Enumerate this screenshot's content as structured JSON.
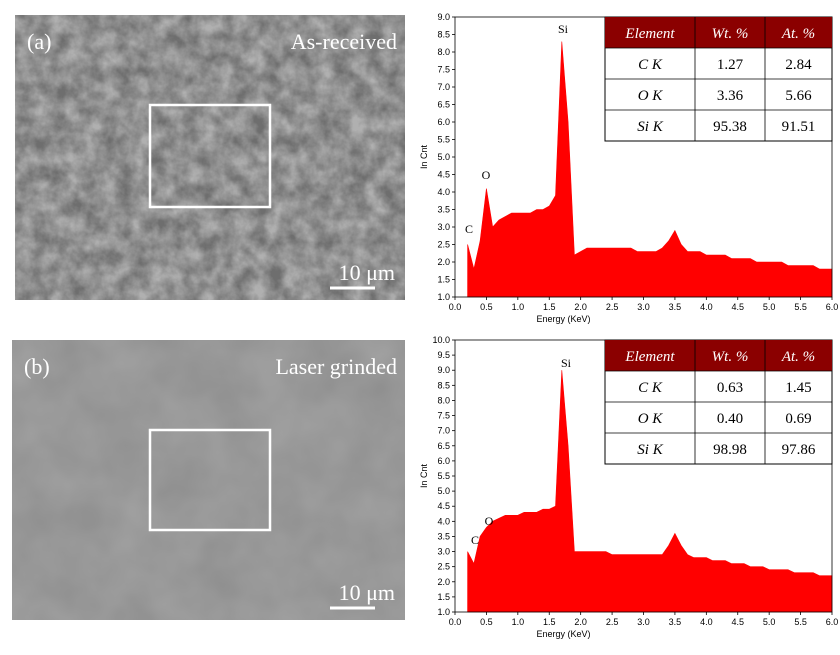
{
  "panels": [
    {
      "label": "(a)",
      "caption": "As-received",
      "scale_bar": "10 μm",
      "spectrum": {
        "type": "area",
        "color": "#ff0000",
        "x_label": "Energy (KeV)",
        "y_label": "In Cnt",
        "xlim": [
          0,
          6
        ],
        "xticks": [
          {
            "value": 0,
            "label": "0.0"
          },
          0.5,
          {
            "value": 1,
            "label": "1.0"
          },
          1.5,
          {
            "value": 2,
            "label": "2.0"
          },
          2.5,
          {
            "value": 3,
            "label": "3.0"
          },
          3.5,
          {
            "value": 4,
            "label": "4.0"
          },
          4.5,
          {
            "value": 5,
            "label": "5.0"
          },
          5.5,
          {
            "value": 6,
            "label": "6.0"
          }
        ],
        "ylim": [
          1,
          9
        ],
        "yticks": [
          {
            "value": 1,
            "label": "1.0"
          },
          1.5,
          {
            "value": 2,
            "label": "2.0"
          },
          2.5,
          {
            "value": 3,
            "label": "3.0"
          },
          3.5,
          {
            "value": 4,
            "label": "4.0"
          },
          4.5,
          {
            "value": 5,
            "label": "5.0"
          },
          5.5,
          {
            "value": 6,
            "label": "6.0"
          },
          6.5,
          {
            "value": 7,
            "label": "7.0"
          },
          7.5,
          {
            "value": 8,
            "label": "8.0"
          },
          8.5,
          {
            "value": 9,
            "label": "9.0"
          }
        ],
        "x": [
          0.2,
          0.3,
          0.4,
          0.5,
          0.6,
          0.7,
          0.8,
          0.9,
          1.0,
          1.1,
          1.2,
          1.3,
          1.4,
          1.5,
          1.6,
          1.7,
          1.8,
          1.9,
          2.0,
          2.1,
          2.2,
          2.3,
          2.4,
          2.5,
          2.6,
          2.7,
          2.8,
          2.9,
          3.0,
          3.1,
          3.2,
          3.3,
          3.4,
          3.5,
          3.6,
          3.7,
          3.8,
          3.9,
          4.0,
          4.1,
          4.2,
          4.3,
          4.4,
          4.5,
          4.6,
          4.7,
          4.8,
          4.9,
          5.0,
          5.1,
          5.2,
          5.3,
          5.4,
          5.5,
          5.6,
          5.7,
          5.8,
          5.9,
          6.0
        ],
        "values": [
          2.5,
          1.8,
          2.6,
          4.1,
          3.0,
          3.2,
          3.3,
          3.4,
          3.4,
          3.4,
          3.4,
          3.5,
          3.5,
          3.6,
          3.9,
          8.3,
          6.0,
          2.2,
          2.3,
          2.4,
          2.4,
          2.4,
          2.4,
          2.4,
          2.4,
          2.4,
          2.4,
          2.3,
          2.3,
          2.3,
          2.3,
          2.4,
          2.6,
          2.9,
          2.5,
          2.3,
          2.3,
          2.3,
          2.2,
          2.2,
          2.2,
          2.2,
          2.1,
          2.1,
          2.1,
          2.1,
          2.0,
          2.0,
          2.0,
          2.0,
          2.0,
          1.9,
          1.9,
          1.9,
          1.9,
          1.9,
          1.8,
          1.8,
          1.8
        ],
        "peaks": [
          "C",
          "O",
          "Si"
        ]
      },
      "table": {
        "header": [
          "Element",
          "Wt. %",
          "At. %"
        ],
        "rows": [
          [
            "C K",
            "1.27",
            "2.84"
          ],
          [
            "O K",
            "3.36",
            "5.66"
          ],
          [
            "Si K",
            "95.38",
            "91.51"
          ]
        ]
      }
    },
    {
      "label": "(b)",
      "caption": "Laser grinded",
      "scale_bar": "10 μm",
      "spectrum": {
        "type": "area",
        "color": "#ff0000",
        "x_label": "Energy (KeV)",
        "y_label": "In Cnt",
        "xlim": [
          0,
          6
        ],
        "xticks": [
          {
            "value": 0,
            "label": "0.0"
          },
          0.5,
          {
            "value": 1,
            "label": "1.0"
          },
          1.5,
          {
            "value": 2,
            "label": "2.0"
          },
          2.5,
          {
            "value": 3,
            "label": "3.0"
          },
          3.5,
          {
            "value": 4,
            "label": "4.0"
          },
          4.5,
          {
            "value": 5,
            "label": "5.0"
          },
          5.5,
          {
            "value": 6,
            "label": "6.0"
          }
        ],
        "ylim": [
          1,
          10
        ],
        "yticks": [
          {
            "value": 1,
            "label": "1.0"
          },
          1.5,
          {
            "value": 2,
            "label": "2.0"
          },
          2.5,
          {
            "value": 3,
            "label": "3.0"
          },
          3.5,
          {
            "value": 4,
            "label": "4.0"
          },
          4.5,
          {
            "value": 5,
            "label": "5.0"
          },
          5.5,
          {
            "value": 6,
            "label": "6.0"
          },
          6.5,
          {
            "value": 7,
            "label": "7.0"
          },
          7.5,
          {
            "value": 8,
            "label": "8.0"
          },
          8.5,
          {
            "value": 9,
            "label": "9.0"
          },
          9.5,
          {
            "value": 10,
            "label": "10.0"
          }
        ],
        "x": [
          0.2,
          0.3,
          0.4,
          0.5,
          0.6,
          0.7,
          0.8,
          0.9,
          1.0,
          1.1,
          1.2,
          1.3,
          1.4,
          1.5,
          1.6,
          1.7,
          1.8,
          1.9,
          2.0,
          2.1,
          2.2,
          2.3,
          2.4,
          2.5,
          2.6,
          2.7,
          2.8,
          2.9,
          3.0,
          3.1,
          3.2,
          3.3,
          3.4,
          3.5,
          3.6,
          3.7,
          3.8,
          3.9,
          4.0,
          4.1,
          4.2,
          4.3,
          4.4,
          4.5,
          4.6,
          4.7,
          4.8,
          4.9,
          5.0,
          5.1,
          5.2,
          5.3,
          5.4,
          5.5,
          5.6,
          5.7,
          5.8,
          5.9,
          6.0
        ],
        "values": [
          3.0,
          2.6,
          3.5,
          3.8,
          4.0,
          4.1,
          4.2,
          4.2,
          4.2,
          4.3,
          4.3,
          4.3,
          4.4,
          4.4,
          4.5,
          9.0,
          6.5,
          3.0,
          3.0,
          3.0,
          3.0,
          3.0,
          3.0,
          2.9,
          2.9,
          2.9,
          2.9,
          2.9,
          2.9,
          2.9,
          2.9,
          2.9,
          3.2,
          3.6,
          3.2,
          2.9,
          2.8,
          2.8,
          2.8,
          2.7,
          2.7,
          2.7,
          2.6,
          2.6,
          2.6,
          2.5,
          2.5,
          2.5,
          2.4,
          2.4,
          2.4,
          2.4,
          2.3,
          2.3,
          2.3,
          2.3,
          2.2,
          2.2,
          2.2
        ],
        "peaks": [
          "C",
          "O",
          "Si"
        ]
      },
      "table": {
        "header": [
          "Element",
          "Wt. %",
          "At. %"
        ],
        "rows": [
          [
            "C K",
            "0.63",
            "1.45"
          ],
          [
            "O K",
            "0.40",
            "0.69"
          ],
          [
            "Si K",
            "98.98",
            "97.86"
          ]
        ]
      }
    }
  ]
}
